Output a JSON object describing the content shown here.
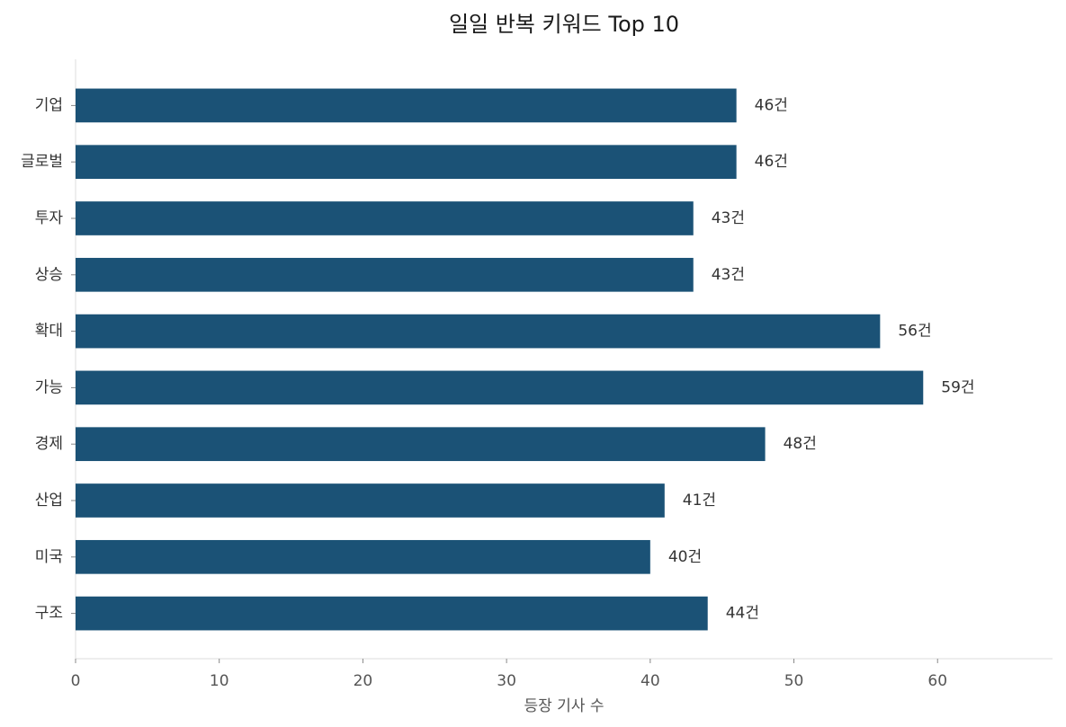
{
  "chart_data": {
    "type": "barh",
    "title": "일일 반복 키워드 Top 10",
    "xlabel": "등장 기사 수",
    "categories": [
      "기업",
      "글로벌",
      "투자",
      "상승",
      "확대",
      "가능",
      "경제",
      "산업",
      "미국",
      "구조"
    ],
    "values": [
      46,
      46,
      43,
      43,
      56,
      59,
      48,
      41,
      40,
      44
    ],
    "value_labels": [
      "46건",
      "46건",
      "43건",
      "43건",
      "56건",
      "59건",
      "48건",
      "41건",
      "40건",
      "44건"
    ],
    "color": "#1b5276",
    "xlim": [
      0,
      68
    ],
    "xticks": [
      0,
      10,
      20,
      30,
      40,
      50,
      60
    ],
    "grid": false
  }
}
